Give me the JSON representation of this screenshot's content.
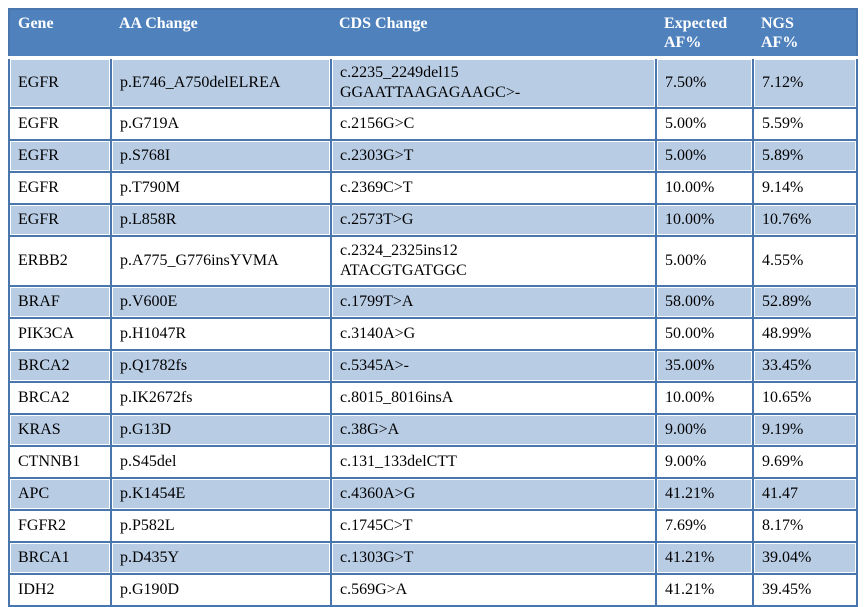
{
  "colors": {
    "header_bg": "#4f81bd",
    "header_text": "#ffffff",
    "row_shaded": "#b8cce4",
    "border": "#4a76ae",
    "body_text": "#000000"
  },
  "table": {
    "columns": [
      "Gene",
      "AA Change",
      "CDS Change",
      "Expected\nAF%",
      "NGS\nAF%"
    ],
    "rows": [
      {
        "gene": "EGFR",
        "aa_change": "p.E746_A750delELREA",
        "cds_change": "c.2235_2249del15\nGGAATTAAGAGAAGC>-",
        "expected_af": "7.50%",
        "ngs_af": "7.12%"
      },
      {
        "gene": "EGFR",
        "aa_change": "p.G719A",
        "cds_change": "c.2156G>C",
        "expected_af": "5.00%",
        "ngs_af": "5.59%"
      },
      {
        "gene": "EGFR",
        "aa_change": "p.S768I",
        "cds_change": "c.2303G>T",
        "expected_af": "5.00%",
        "ngs_af": "5.89%"
      },
      {
        "gene": "EGFR",
        "aa_change": "p.T790M",
        "cds_change": "c.2369C>T",
        "expected_af": "10.00%",
        "ngs_af": "9.14%"
      },
      {
        "gene": "EGFR",
        "aa_change": "p.L858R",
        "cds_change": "c.2573T>G",
        "expected_af": "10.00%",
        "ngs_af": "10.76%"
      },
      {
        "gene": "ERBB2",
        "aa_change": "p.A775_G776insYVMA",
        "cds_change": "c.2324_2325ins12\nATACGTGATGGC",
        "expected_af": "5.00%",
        "ngs_af": "4.55%"
      },
      {
        "gene": "BRAF",
        "aa_change": "p.V600E",
        "cds_change": "c.1799T>A",
        "expected_af": "58.00%",
        "ngs_af": "52.89%"
      },
      {
        "gene": "PIK3CA",
        "aa_change": "p.H1047R",
        "cds_change": "c.3140A>G",
        "expected_af": "50.00%",
        "ngs_af": "48.99%"
      },
      {
        "gene": "BRCA2",
        "aa_change": "p.Q1782fs",
        "cds_change": "c.5345A>-",
        "expected_af": "35.00%",
        "ngs_af": "33.45%"
      },
      {
        "gene": "BRCA2",
        "aa_change": "p.IK2672fs",
        "cds_change": "c.8015_8016insA",
        "expected_af": "10.00%",
        "ngs_af": "10.65%"
      },
      {
        "gene": "KRAS",
        "aa_change": "p.G13D",
        "cds_change": "c.38G>A",
        "expected_af": "9.00%",
        "ngs_af": "9.19%"
      },
      {
        "gene": "CTNNB1",
        "aa_change": "p.S45del",
        "cds_change": "c.131_133delCTT",
        "expected_af": "9.00%",
        "ngs_af": "9.69%"
      },
      {
        "gene": "APC",
        "aa_change": "p.K1454E",
        "cds_change": "c.4360A>G",
        "expected_af": "41.21%",
        "ngs_af": "41.47"
      },
      {
        "gene": "FGFR2",
        "aa_change": "p.P582L",
        "cds_change": "c.1745C>T",
        "expected_af": "7.69%",
        "ngs_af": "8.17%"
      },
      {
        "gene": "BRCA1",
        "aa_change": "p.D435Y",
        "cds_change": "c.1303G>T",
        "expected_af": "41.21%",
        "ngs_af": "39.04%"
      },
      {
        "gene": "IDH2",
        "aa_change": "p.G190D",
        "cds_change": "c.569G>A",
        "expected_af": "41.21%",
        "ngs_af": "39.45%"
      }
    ]
  },
  "chart_data": {
    "type": "table",
    "title": "",
    "columns": [
      "Gene",
      "AA Change",
      "CDS Change",
      "Expected AF%",
      "NGS AF%"
    ],
    "rows": [
      [
        "EGFR",
        "p.E746_A750delELREA",
        "c.2235_2249del15 GGAATTAAGAGAAGC>-",
        "7.50%",
        "7.12%"
      ],
      [
        "EGFR",
        "p.G719A",
        "c.2156G>C",
        "5.00%",
        "5.59%"
      ],
      [
        "EGFR",
        "p.S768I",
        "c.2303G>T",
        "5.00%",
        "5.89%"
      ],
      [
        "EGFR",
        "p.T790M",
        "c.2369C>T",
        "10.00%",
        "9.14%"
      ],
      [
        "EGFR",
        "p.L858R",
        "c.2573T>G",
        "10.00%",
        "10.76%"
      ],
      [
        "ERBB2",
        "p.A775_G776insYVMA",
        "c.2324_2325ins12 ATACGTGATGGC",
        "5.00%",
        "4.55%"
      ],
      [
        "BRAF",
        "p.V600E",
        "c.1799T>A",
        "58.00%",
        "52.89%"
      ],
      [
        "PIK3CA",
        "p.H1047R",
        "c.3140A>G",
        "50.00%",
        "48.99%"
      ],
      [
        "BRCA2",
        "p.Q1782fs",
        "c.5345A>-",
        "35.00%",
        "33.45%"
      ],
      [
        "BRCA2",
        "p.IK2672fs",
        "c.8015_8016insA",
        "10.00%",
        "10.65%"
      ],
      [
        "KRAS",
        "p.G13D",
        "c.38G>A",
        "9.00%",
        "9.19%"
      ],
      [
        "CTNNB1",
        "p.S45del",
        "c.131_133delCTT",
        "9.00%",
        "9.69%"
      ],
      [
        "APC",
        "p.K1454E",
        "c.4360A>G",
        "41.21%",
        "41.47"
      ],
      [
        "FGFR2",
        "p.P582L",
        "c.1745C>T",
        "7.69%",
        "8.17%"
      ],
      [
        "BRCA1",
        "p.D435Y",
        "c.1303G>T",
        "41.21%",
        "39.04%"
      ],
      [
        "IDH2",
        "p.G190D",
        "c.569G>A",
        "41.21%",
        "39.45%"
      ]
    ]
  }
}
